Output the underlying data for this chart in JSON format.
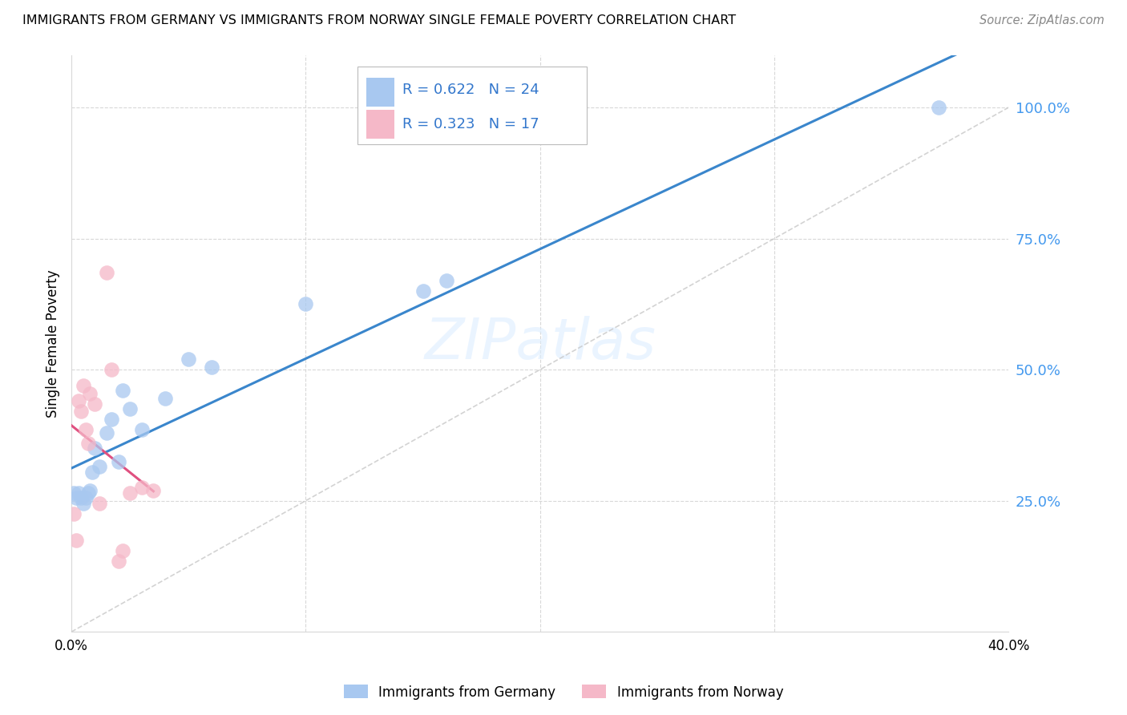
{
  "title": "IMMIGRANTS FROM GERMANY VS IMMIGRANTS FROM NORWAY SINGLE FEMALE POVERTY CORRELATION CHART",
  "source": "Source: ZipAtlas.com",
  "ylabel": "Single Female Poverty",
  "legend_germany": "Immigrants from Germany",
  "legend_norway": "Immigrants from Norway",
  "R_germany": "0.622",
  "N_germany": "24",
  "R_norway": "0.323",
  "N_norway": "17",
  "color_germany": "#a8c8f0",
  "color_norway": "#f5b8c8",
  "trendline_germany": "#3a86cc",
  "trendline_norway": "#e05080",
  "trendline_diagonal": "#c8c8c8",
  "background": "#ffffff",
  "grid_color": "#d8d8d8",
  "germany_x": [
    0.001,
    0.002,
    0.003,
    0.004,
    0.005,
    0.006,
    0.007,
    0.008,
    0.009,
    0.01,
    0.012,
    0.015,
    0.017,
    0.02,
    0.022,
    0.025,
    0.03,
    0.04,
    0.05,
    0.06,
    0.1,
    0.15,
    0.16,
    0.37
  ],
  "germany_y": [
    0.265,
    0.255,
    0.265,
    0.255,
    0.245,
    0.255,
    0.265,
    0.27,
    0.305,
    0.35,
    0.315,
    0.38,
    0.405,
    0.325,
    0.46,
    0.425,
    0.385,
    0.445,
    0.52,
    0.505,
    0.625,
    0.65,
    0.67,
    1.0
  ],
  "norway_x": [
    0.001,
    0.002,
    0.003,
    0.004,
    0.005,
    0.006,
    0.007,
    0.008,
    0.01,
    0.012,
    0.015,
    0.017,
    0.02,
    0.022,
    0.025,
    0.03,
    0.035
  ],
  "norway_y": [
    0.225,
    0.175,
    0.44,
    0.42,
    0.47,
    0.385,
    0.36,
    0.455,
    0.435,
    0.245,
    0.685,
    0.5,
    0.135,
    0.155,
    0.265,
    0.275,
    0.27
  ],
  "xlim": [
    0.0,
    0.4
  ],
  "ylim": [
    0.0,
    1.1
  ],
  "ytick_vals": [
    0.25,
    0.5,
    0.75,
    1.0
  ],
  "ytick_labels": [
    "25.0%",
    "50.0%",
    "75.0%",
    "100.0%"
  ],
  "xtick_vals": [
    0.0,
    0.1,
    0.2,
    0.3,
    0.4
  ],
  "xtick_labels": [
    "0.0%",
    "",
    "",
    "",
    "40.0%"
  ]
}
